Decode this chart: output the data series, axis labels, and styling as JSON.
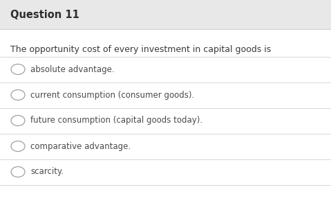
{
  "title": "Question 11",
  "question": "The opportunity cost of every investment in capital goods is",
  "options": [
    "absolute advantage.",
    "current consumption (consumer goods).",
    "future consumption (capital goods today).",
    "comparative advantage.",
    "scarcity."
  ],
  "white_color": "#ffffff",
  "title_color": "#2d2d2d",
  "question_color": "#3a3a3a",
  "option_color": "#4a4a4a",
  "divider_color": "#d0d0d0",
  "header_bg": "#e8e8e8",
  "circle_edge": "#a0a0a0",
  "title_fontsize": 10.5,
  "question_fontsize": 9.0,
  "option_fontsize": 8.5,
  "fig_width": 4.79,
  "fig_height": 3.16,
  "dpi": 100
}
